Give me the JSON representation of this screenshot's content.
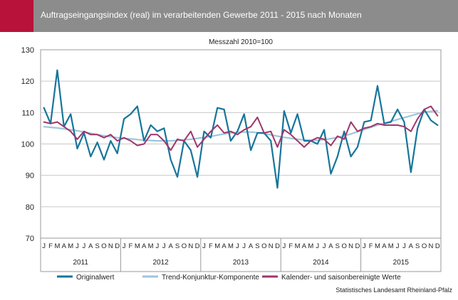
{
  "title": "Auftragseingangsindex (real) im verarbeitenden Gewerbe 2011 - 2015 nach Monaten",
  "source": "Statistisches Landesamt Rheinland-Pfalz",
  "colors": {
    "header": "#8c8c8c",
    "accent": "#b8123a",
    "original": "#17759a",
    "trend": "#9cc6dc",
    "seasonal": "#a0356b"
  },
  "chart_data": {
    "type": "line",
    "subtitle": "Messzahl 2010=100",
    "ylim": [
      70,
      130
    ],
    "yticks": [
      70,
      80,
      90,
      100,
      110,
      120,
      130
    ],
    "grid": true,
    "legend_position": "bottom",
    "month_labels": [
      "J",
      "F",
      "M",
      "A",
      "M",
      "J",
      "J",
      "A",
      "S",
      "O",
      "N",
      "D"
    ],
    "years": [
      "2011",
      "2012",
      "2013",
      "2014",
      "2015"
    ],
    "series": [
      {
        "name": "Originalwert",
        "color": "#17759a",
        "width": 2.2,
        "values": [
          111.5,
          106.5,
          123.5,
          105.5,
          109.5,
          98.5,
          103.5,
          96,
          100.5,
          95,
          101,
          97,
          108,
          109.5,
          112,
          101,
          106,
          104,
          105,
          95,
          89.5,
          101,
          98,
          89.5,
          104,
          102,
          111.5,
          111,
          101,
          104,
          109.5,
          98,
          103.5,
          103.5,
          101,
          86,
          110.5,
          103.5,
          109.5,
          101,
          101,
          100,
          104.5,
          90.5,
          96,
          104,
          96,
          99,
          107,
          107.5,
          118.5,
          106.5,
          107,
          111,
          107,
          91,
          105,
          111,
          107.5,
          106
        ]
      },
      {
        "name": "Trend-Konjunktur-Komponente",
        "color": "#9cc6dc",
        "width": 2.2,
        "values": [
          105.5,
          105.3,
          105.1,
          104.8,
          104.5,
          104.2,
          103.8,
          103.4,
          103,
          102.6,
          102.3,
          102,
          101.8,
          101.6,
          101.4,
          101.2,
          101.1,
          101,
          101,
          101,
          101.1,
          101.3,
          101.5,
          101.8,
          102.1,
          102.4,
          102.8,
          103.2,
          103.5,
          103.7,
          103.8,
          103.8,
          103.6,
          103.3,
          102.9,
          102.5,
          102.1,
          101.8,
          101.5,
          101.3,
          101.2,
          101.2,
          101.4,
          101.7,
          102.1,
          102.6,
          103.2,
          103.9,
          104.6,
          105.3,
          106,
          106.6,
          107.2,
          107.8,
          108.4,
          109,
          109.6,
          110.1,
          110.4,
          110.5
        ]
      },
      {
        "name": "Kalender- und saisonbereinigte Werte",
        "color": "#a0356b",
        "width": 2,
        "values": [
          107,
          106.5,
          107,
          105.5,
          104,
          101.5,
          104,
          103,
          103,
          102,
          103,
          101,
          102,
          101,
          99.5,
          100,
          103,
          103,
          101,
          98,
          101.5,
          101,
          104,
          99,
          101.5,
          104,
          106,
          103.5,
          104,
          103,
          104.5,
          105.5,
          108.5,
          103.5,
          104,
          99,
          104.5,
          103,
          101,
          99,
          101,
          102,
          101.5,
          99.5,
          102.5,
          101.5,
          107,
          104,
          105,
          105.5,
          106.5,
          106,
          106,
          106,
          105.5,
          104,
          108,
          111,
          112,
          109
        ]
      }
    ]
  }
}
